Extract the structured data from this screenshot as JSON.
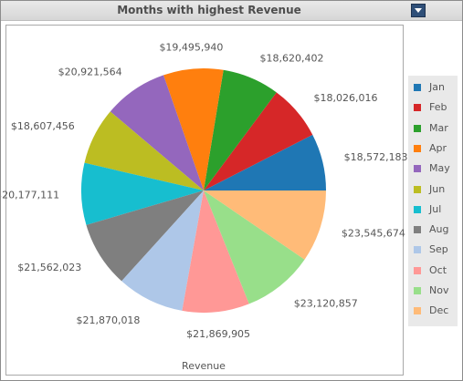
{
  "header": {
    "title": "Months with highest Revenue",
    "menu_icon": "chevron-down-icon"
  },
  "chart_data": {
    "type": "pie",
    "title": "Months with highest Revenue",
    "xlabel": "Revenue",
    "legend_position": "right",
    "categories": [
      "Jan",
      "Feb",
      "Mar",
      "Apr",
      "May",
      "Jun",
      "Jul",
      "Aug",
      "Sep",
      "Oct",
      "Nov",
      "Dec"
    ],
    "values": [
      18572183,
      18026016,
      18620402,
      19495940,
      20921564,
      18607456,
      20177111,
      21562023,
      21870018,
      21869905,
      23120857,
      23545674
    ],
    "labels": [
      "$18,572,183",
      "$18,026,016",
      "$18,620,402",
      "$19,495,940",
      "$20,921,564",
      "$18,607,456",
      "$20,177,111",
      "$21,562,023",
      "$21,870,018",
      "$21,869,905",
      "$23,120,857",
      "$23,545,674"
    ],
    "colors": [
      "#1f77b4",
      "#d62728",
      "#2ca02c",
      "#ff7f0e",
      "#9467bd",
      "#bcbd22",
      "#17becf",
      "#7f7f7f",
      "#aec7e8",
      "#ff9896",
      "#98df8a",
      "#ffbb78"
    ]
  }
}
